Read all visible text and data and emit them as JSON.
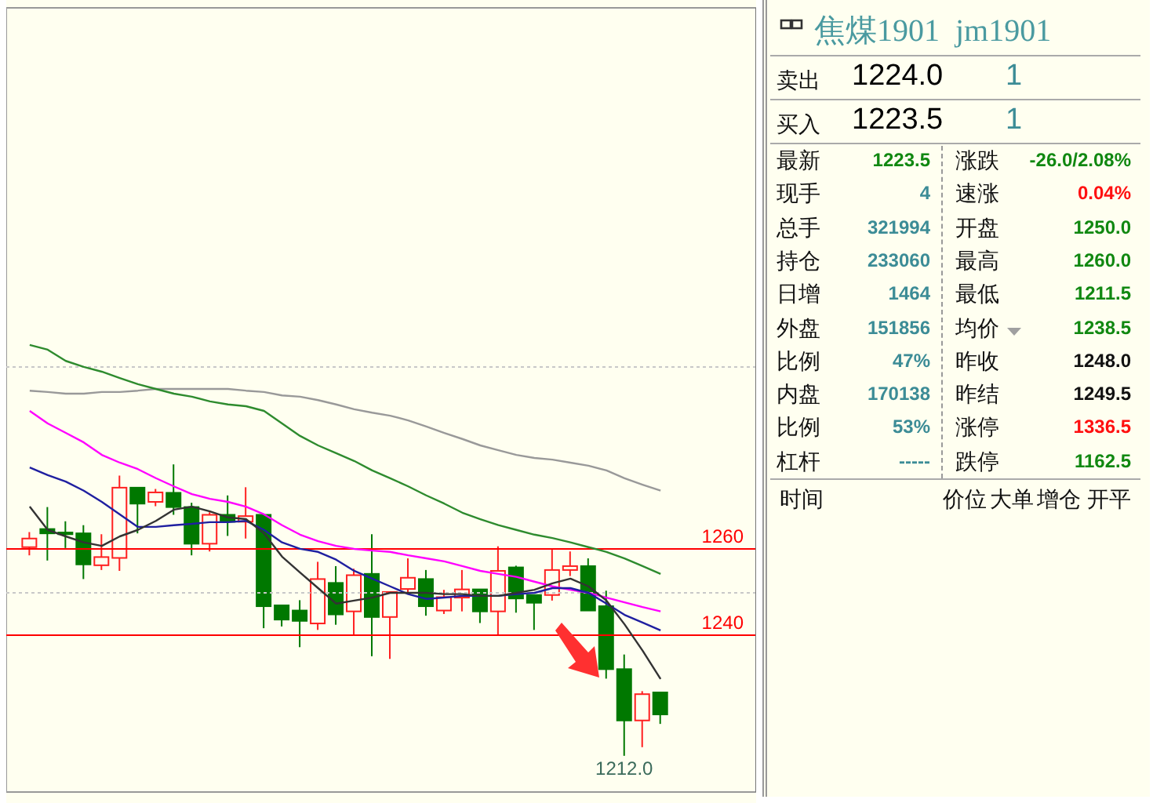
{
  "chart_data": [
    {
      "type": "candlestick",
      "categories": [
        null,
        null,
        null,
        null,
        null,
        null,
        null,
        null,
        null,
        null,
        null,
        null,
        null,
        null,
        null,
        null,
        null,
        null,
        null,
        null,
        null,
        null,
        null,
        null,
        null,
        null,
        null,
        null,
        null,
        null,
        null,
        null,
        null,
        null,
        null,
        null
      ],
      "ohlc": [
        [
          1260.4,
          1263.9,
          1258.5,
          1262.4
        ],
        [
          1264.6,
          1269.7,
          1257.3,
          1263.6
        ],
        [
          1263.8,
          1266.4,
          1260.2,
          1263.4
        ],
        [
          1263.6,
          1265.5,
          1253.0,
          1256.4
        ],
        [
          1256.2,
          1263.4,
          1255.1,
          1258.1
        ],
        [
          1257.9,
          1277.0,
          1254.9,
          1274.2
        ],
        [
          1274.2,
          1274.2,
          1263.6,
          1270.5
        ],
        [
          1270.9,
          1273.9,
          1269.9,
          1273.1
        ],
        [
          1273.0,
          1279.6,
          1267.9,
          1269.7
        ],
        [
          1269.7,
          1270.7,
          1258.5,
          1261.2
        ],
        [
          1261.2,
          1268.5,
          1259.4,
          1267.9
        ],
        [
          1267.9,
          1272.4,
          1263.0,
          1266.3
        ],
        [
          1266.3,
          1274.3,
          1262.4,
          1267.6
        ],
        [
          1267.9,
          1267.9,
          1241.6,
          1246.7
        ],
        [
          1246.9,
          1246.9,
          1242.0,
          1243.6
        ],
        [
          1245.7,
          1248.1,
          1237.2,
          1243.3
        ],
        [
          1242.7,
          1257.0,
          1241.2,
          1253.0
        ],
        [
          1252.1,
          1256.0,
          1242.4,
          1244.8
        ],
        [
          1245.5,
          1255.4,
          1240.0,
          1253.9
        ],
        [
          1254.2,
          1263.4,
          1235.1,
          1244.2
        ],
        [
          1244.2,
          1250.0,
          1234.5,
          1250.0
        ],
        [
          1250.7,
          1257.8,
          1249.5,
          1253.3
        ],
        [
          1253.0,
          1255.1,
          1244.5,
          1246.7
        ],
        [
          1245.7,
          1250.5,
          1244.9,
          1248.8
        ],
        [
          1248.7,
          1255.1,
          1245.5,
          1250.6
        ],
        [
          1250.6,
          1250.6,
          1242.8,
          1245.5
        ],
        [
          1245.5,
          1260.6,
          1240.0,
          1254.9
        ],
        [
          1255.7,
          1256.1,
          1245.2,
          1248.5
        ],
        [
          1249.3,
          1249.3,
          1241.2,
          1247.5
        ],
        [
          1249.3,
          1259.8,
          1248.0,
          1255.1
        ],
        [
          1255.1,
          1259.4,
          1253.7,
          1256.0
        ],
        [
          1256.0,
          1257.8,
          1245.7,
          1245.7
        ],
        [
          1246.7,
          1250.3,
          1229.9,
          1232.1
        ],
        [
          1232.1,
          1235.5,
          1212.0,
          1220.2
        ],
        [
          1220.2,
          1227.0,
          1214.0,
          1226.3
        ],
        [
          1226.7,
          1226.7,
          1219.4,
          1221.6
        ]
      ],
      "series": [
        {
          "type": "line",
          "color": "#999999",
          "values": [
            1296.7,
            1296.4,
            1296,
            1296,
            1296.4,
            1296.4,
            1296.7,
            1297.1,
            1297.1,
            1297.1,
            1297.1,
            1297.1,
            1296.7,
            1296.4,
            1295.6,
            1295.3,
            1294.5,
            1293.5,
            1292.4,
            1291.6,
            1290.9,
            1289.8,
            1288.4,
            1286.9,
            1285.5,
            1284,
            1282.9,
            1281.8,
            1281.1,
            1280.7,
            1280,
            1279.3,
            1278.2,
            1276.4,
            1274.9,
            1273.5
          ]
        },
        {
          "type": "line",
          "color": "#2e8b2e",
          "values": [
            1307.3,
            1306.2,
            1303.6,
            1302.2,
            1301.1,
            1299.6,
            1298.2,
            1297.1,
            1296,
            1295.3,
            1294.2,
            1293.5,
            1293.1,
            1292,
            1289.1,
            1286.2,
            1284,
            1282.2,
            1280.4,
            1278.2,
            1276.4,
            1274.5,
            1272.4,
            1270.5,
            1268.4,
            1266.9,
            1265.5,
            1264.4,
            1263.3,
            1262.5,
            1261.5,
            1260.4,
            1259.3,
            1257.8,
            1256,
            1254.2
          ]
        },
        {
          "type": "line",
          "color": "#ff00ff",
          "values": [
            1292,
            1289.1,
            1286.9,
            1284.7,
            1281.8,
            1280,
            1278.5,
            1276.4,
            1274.5,
            1272.7,
            1271.6,
            1270.9,
            1269.8,
            1268,
            1265.5,
            1263.3,
            1261.8,
            1260.7,
            1260,
            1259.6,
            1259.3,
            1258.5,
            1257.8,
            1257.1,
            1256,
            1254.9,
            1254.2,
            1253.5,
            1252.4,
            1251.3,
            1250.5,
            1249.8,
            1248.7,
            1247.6,
            1246.5,
            1245.5
          ]
        },
        {
          "type": "line",
          "color": "#1f1fa0",
          "values": [
            1278.9,
            1277.1,
            1275.6,
            1273.5,
            1270.9,
            1268,
            1265.1,
            1265.1,
            1265.5,
            1265.8,
            1266.2,
            1266.2,
            1266.5,
            1264.4,
            1261.5,
            1260,
            1259.3,
            1257.5,
            1254.9,
            1253.1,
            1251.3,
            1249.5,
            1248.4,
            1248.7,
            1249.1,
            1249.1,
            1249.1,
            1249.5,
            1249.8,
            1250.9,
            1250.9,
            1249.8,
            1247.3,
            1244.7,
            1242.9,
            1241.1
          ]
        },
        {
          "type": "line",
          "color": "#333333",
          "values": [
            1269.8,
            1264.4,
            1262.9,
            1261.5,
            1260.7,
            1262.9,
            1264.4,
            1266.5,
            1269.1,
            1269.8,
            1268.7,
            1267.3,
            1266.9,
            1263.6,
            1258.2,
            1254.5,
            1250.9,
            1247.3,
            1248,
            1248.7,
            1249.8,
            1249.8,
            1249.8,
            1249.5,
            1249.5,
            1249.1,
            1249.1,
            1249.8,
            1250.5,
            1252,
            1253.1,
            1251.3,
            1248,
            1242.5,
            1236.4,
            1229.8
          ]
        }
      ],
      "ylim": [
        1203.6,
        1385.5
      ],
      "yticks": [
        1240,
        1260
      ],
      "tick_labels": "y",
      "ref_lines": [
        {
          "axis": "y",
          "value": 1260,
          "color": "#ff0000"
        },
        {
          "axis": "y",
          "value": 1240,
          "color": "#ff0000"
        },
        {
          "axis": "y",
          "value": 1302.2,
          "color": "#c8c8c8",
          "line_style": "dotted"
        },
        {
          "axis": "y",
          "value": 1249.8,
          "color": "#c8c8c8",
          "line_style": "dotted"
        }
      ],
      "annotations": [
        {
          "text": "1212.0",
          "y": 1212.0
        }
      ]
    },
    {
      "type": "other",
      "title": "焦煤1901  jm1901",
      "annotations": [
        "卖出",
        "1224.0",
        "1",
        "买入",
        "1223.5",
        "1",
        "最新",
        "1223.5",
        "涨跌",
        "-26.0/2.08%",
        "现手",
        "4",
        "速涨",
        "0.04%",
        "总手",
        "321994",
        "开盘",
        "1250.0",
        "持仓",
        "233060",
        "最高",
        "1260.0",
        "日增",
        "1464",
        "最低",
        "1211.5",
        "外盘",
        "151856",
        "均价",
        "1238.5",
        "比例",
        "47%",
        "昨收",
        "1248.0",
        "内盘",
        "170138",
        "昨结",
        "1249.5",
        "比例",
        "53%",
        "涨停",
        "1336.5",
        "杠杆",
        "-----",
        "跌停",
        "1162.5",
        "时间",
        "价位",
        "大单",
        "增仓",
        "开平"
      ]
    }
  ]
}
